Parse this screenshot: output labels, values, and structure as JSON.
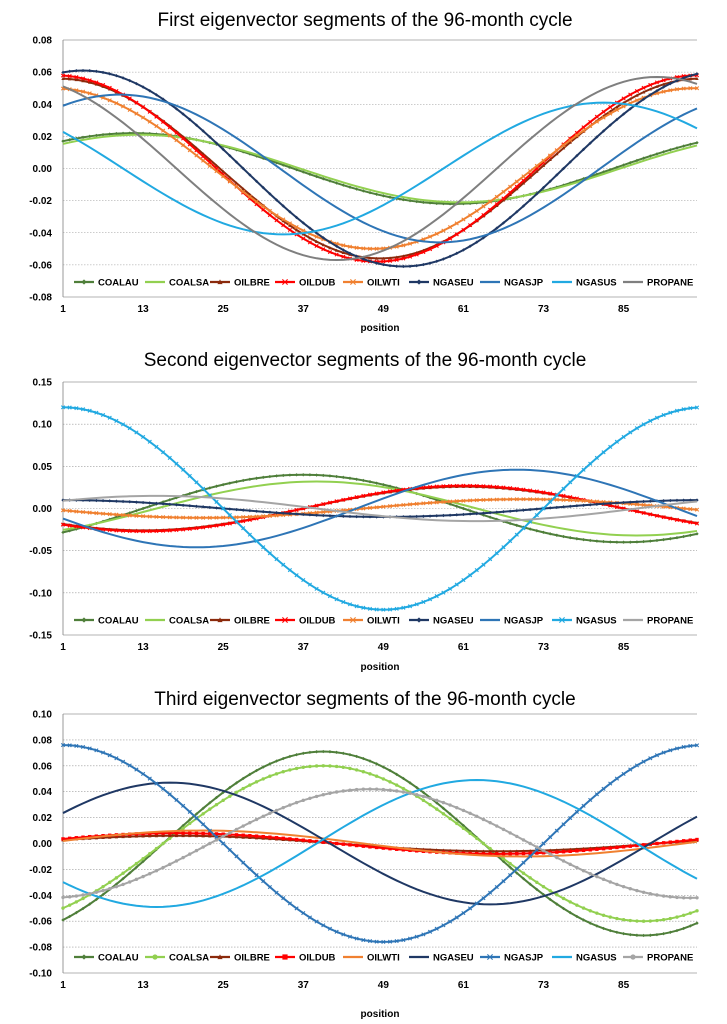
{
  "chart_data": [
    {
      "type": "line",
      "title": "First eigenvector segments of the 96-month cycle",
      "xlabel": "position",
      "ylabel": "",
      "xlim": [
        1,
        96
      ],
      "ylim": [
        -0.08,
        0.08
      ],
      "x_ticks": [
        "1",
        "13",
        "25",
        "37",
        "49",
        "61",
        "73",
        "85"
      ],
      "y_ticks": [
        "0.08",
        "0.06",
        "0.04",
        "0.02",
        "0.00",
        "-0.02",
        "-0.04",
        "-0.06",
        "-0.08"
      ],
      "grid": true,
      "legend": "bottom",
      "series": [
        {
          "name": "COALAU",
          "color": "#4f7f3a",
          "marker": "diamond",
          "model": {
            "A": 0.022,
            "C": 0.0,
            "phi": 11.5,
            "P": 96
          }
        },
        {
          "name": "COALSA",
          "color": "#92d050",
          "marker": "none",
          "model": {
            "A": 0.021,
            "C": 0.0,
            "phi": 12.5,
            "P": 96
          }
        },
        {
          "name": "OILBRE",
          "color": "#8b2a0c",
          "marker": "triangle",
          "model": {
            "A": 0.056,
            "C": 0.0,
            "phi": 0.5,
            "P": 96
          }
        },
        {
          "name": "OILDUB",
          "color": "#ff0000",
          "marker": "cross",
          "model": {
            "A": 0.058,
            "C": 0.0,
            "phi": 0.0,
            "P": 96
          }
        },
        {
          "name": "OILWTI",
          "color": "#f08030",
          "marker": "cross",
          "model": {
            "A": 0.05,
            "C": 0.0,
            "phi": -0.5,
            "P": 96
          }
        },
        {
          "name": "NGASEU",
          "color": "#1f3864",
          "marker": "diamond",
          "model": {
            "A": 0.061,
            "C": 0.0,
            "phi": 4.0,
            "P": 96
          }
        },
        {
          "name": "NGASJP",
          "color": "#2e75b6",
          "marker": "none",
          "model": {
            "A": 0.046,
            "C": 0.0,
            "phi": 9.5,
            "P": 96
          }
        },
        {
          "name": "NGASUS",
          "color": "#21a9e1",
          "marker": "none",
          "model": {
            "A": 0.041,
            "C": 0.0,
            "phi": -14.0,
            "P": 96
          }
        },
        {
          "name": "PROPANE",
          "color": "#7f7f7f",
          "marker": "none",
          "model": {
            "A": 0.057,
            "C": 0.0,
            "phi": -6.0,
            "P": 96
          }
        }
      ]
    },
    {
      "type": "line",
      "title": "Second eigenvector segments of the 96-month cycle",
      "xlabel": "position",
      "ylabel": "",
      "xlim": [
        1,
        96
      ],
      "ylim": [
        -0.15,
        0.15
      ],
      "x_ticks": [
        "1",
        "13",
        "25",
        "37",
        "49",
        "61",
        "73",
        "85"
      ],
      "y_ticks": [
        "0.15",
        "0.10",
        "0.05",
        "0.00",
        "-0.05",
        "-0.10",
        "-0.15"
      ],
      "grid": true,
      "legend": "bottom",
      "series": [
        {
          "name": "COALAU",
          "color": "#4f7f3a",
          "marker": "diamond",
          "model": {
            "A": 0.04,
            "C": 0.0,
            "phi": 37.0,
            "P": 96
          }
        },
        {
          "name": "COALSA",
          "color": "#92d050",
          "marker": "none",
          "model": {
            "A": 0.032,
            "C": 0.0,
            "phi": 39.0,
            "P": 96
          }
        },
        {
          "name": "OILBRE",
          "color": "#8b2a0c",
          "marker": "triangle",
          "model": {
            "A": 0.026,
            "C": 0.0,
            "phi": 61.0,
            "P": 96
          }
        },
        {
          "name": "OILDUB",
          "color": "#ff0000",
          "marker": "cross",
          "model": {
            "A": 0.027,
            "C": 0.0,
            "phi": 61.0,
            "P": 96
          }
        },
        {
          "name": "OILWTI",
          "color": "#f08030",
          "marker": "cross",
          "model": {
            "A": 0.011,
            "C": 0.0,
            "phi": 70.0,
            "P": 96
          }
        },
        {
          "name": "NGASEU",
          "color": "#1f3864",
          "marker": "diamond",
          "model": {
            "A": 0.01,
            "C": 0.0,
            "phi": 1.0,
            "P": 96
          }
        },
        {
          "name": "NGASJP",
          "color": "#2e75b6",
          "marker": "none",
          "model": {
            "A": 0.046,
            "C": 0.0,
            "phi": 69.0,
            "P": 96
          }
        },
        {
          "name": "NGASUS",
          "color": "#21a9e1",
          "marker": "cross",
          "model": {
            "A": 0.12,
            "C": 0.0,
            "phi": 1.0,
            "P": 96
          }
        },
        {
          "name": "PROPANE",
          "color": "#a5a5a5",
          "marker": "none",
          "model": {
            "A": 0.015,
            "C": 0.0,
            "phi": 15.0,
            "P": 96
          }
        }
      ]
    },
    {
      "type": "line",
      "title": "Third eigenvector segments of the 96-month cycle",
      "xlabel": "position",
      "ylabel": "",
      "xlim": [
        1,
        96
      ],
      "ylim": [
        -0.1,
        0.1
      ],
      "x_ticks": [
        "1",
        "13",
        "25",
        "37",
        "49",
        "61",
        "73",
        "85"
      ],
      "y_ticks": [
        "0.10",
        "0.08",
        "0.06",
        "0.04",
        "0.02",
        "0.00",
        "-0.02",
        "-0.04",
        "-0.06",
        "-0.08",
        "-0.10"
      ],
      "grid": true,
      "legend": "bottom",
      "series": [
        {
          "name": "COALAU",
          "color": "#4f7f3a",
          "marker": "diamond",
          "model": {
            "A": 0.071,
            "C": 0.0,
            "phi": 40.0,
            "P": 96
          }
        },
        {
          "name": "COALSA",
          "color": "#92d050",
          "marker": "circle",
          "model": {
            "A": 0.06,
            "C": 0.0,
            "phi": 40.0,
            "P": 96
          }
        },
        {
          "name": "OILBRE",
          "color": "#8b2a0c",
          "marker": "triangle",
          "model": {
            "A": 0.006,
            "C": 0.0,
            "phi": 18.0,
            "P": 96
          }
        },
        {
          "name": "OILDUB",
          "color": "#ff0000",
          "marker": "square",
          "model": {
            "A": 0.008,
            "C": 0.0,
            "phi": 18.0,
            "P": 96
          }
        },
        {
          "name": "OILWTI",
          "color": "#f08030",
          "marker": "none",
          "model": {
            "A": 0.01,
            "C": 0.0,
            "phi": 22.0,
            "P": 96
          }
        },
        {
          "name": "NGASEU",
          "color": "#1f3864",
          "marker": "none",
          "model": {
            "A": 0.047,
            "C": 0.0,
            "phi": 17.0,
            "P": 96
          }
        },
        {
          "name": "NGASJP",
          "color": "#2e75b6",
          "marker": "cross",
          "model": {
            "A": 0.076,
            "C": 0.0,
            "phi": 1.0,
            "P": 96
          }
        },
        {
          "name": "NGASUS",
          "color": "#21a9e1",
          "marker": "none",
          "model": {
            "A": 0.049,
            "C": 0.0,
            "phi": 63.0,
            "P": 96
          }
        },
        {
          "name": "PROPANE",
          "color": "#a5a5a5",
          "marker": "circle",
          "model": {
            "A": 0.042,
            "C": 0.0,
            "phi": 47.0,
            "P": 96
          }
        }
      ]
    }
  ]
}
